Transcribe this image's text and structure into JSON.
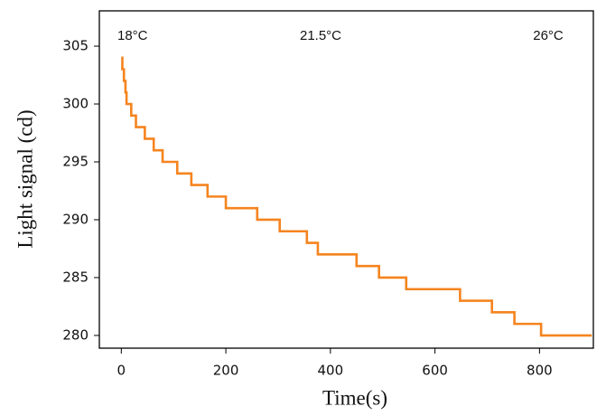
{
  "chart_data": {
    "type": "line",
    "xlabel": "Time(s)",
    "ylabel": "Light signal (cd)",
    "annotations": [
      "18°C",
      "21.5°C",
      "26°C"
    ],
    "x": [
      0,
      2,
      2,
      5,
      5,
      8,
      8,
      10,
      10,
      19,
      19,
      28,
      28,
      45,
      45,
      62,
      62,
      79,
      79,
      107,
      107,
      134,
      134,
      165,
      165,
      200,
      200,
      260,
      260,
      303,
      303,
      355,
      355,
      376,
      376,
      450,
      450,
      493,
      493,
      545,
      545,
      648,
      648,
      709,
      709,
      752,
      752,
      803,
      803,
      900
    ],
    "series": [
      {
        "name": "Light signal",
        "color": "#f5841f",
        "values": [
          304,
          304,
          303,
          303,
          302,
          302,
          301,
          301,
          300,
          300,
          299,
          299,
          298,
          298,
          297,
          297,
          296,
          296,
          295,
          295,
          294,
          294,
          293,
          293,
          292,
          292,
          291,
          291,
          290,
          290,
          289,
          289,
          288,
          288,
          287,
          287,
          286,
          286,
          285,
          285,
          284,
          284,
          283,
          283,
          282,
          282,
          281,
          281,
          280,
          280
        ]
      }
    ],
    "xlim": [
      -42,
      903
    ],
    "ylim": [
      278.9,
      308.05
    ],
    "xticks": [
      0,
      200,
      400,
      600,
      800
    ],
    "yticks": [
      280,
      285,
      290,
      295,
      300,
      305
    ],
    "grid": false
  }
}
